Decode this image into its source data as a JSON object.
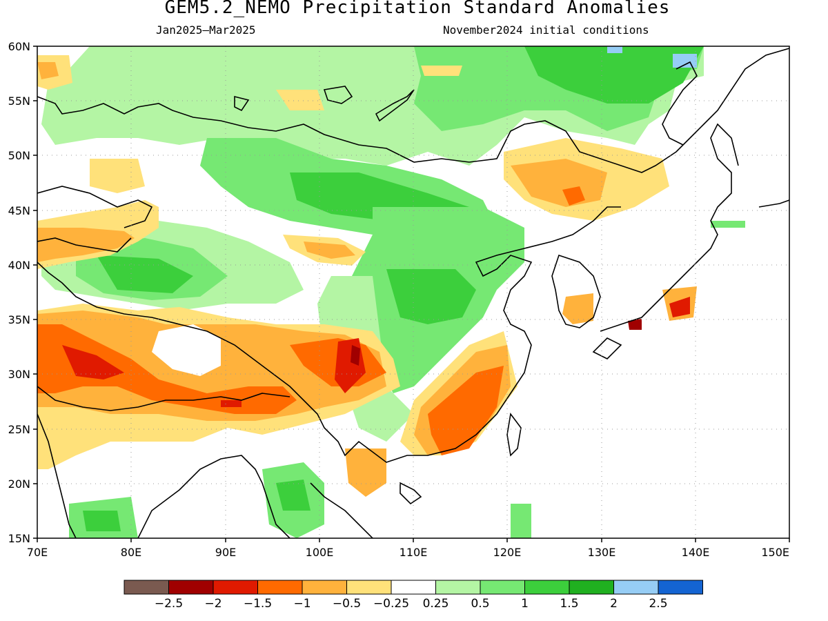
{
  "title": "GEM5.2_NEMO Precipitation Standard Anomalies",
  "subtitle_left": "Jan2025–Mar2025",
  "subtitle_right": "November2024 initial conditions",
  "lat_labels": [
    "60N",
    "55N",
    "50N",
    "45N",
    "40N",
    "35N",
    "30N",
    "25N",
    "20N",
    "15N"
  ],
  "lon_labels": [
    "70E",
    "80E",
    "90E",
    "100E",
    "110E",
    "120E",
    "130E",
    "140E",
    "150E"
  ],
  "colorbar": {
    "colors": [
      "#7a5a50",
      "#a00000",
      "#e01a00",
      "#ff6a00",
      "#ffb23c",
      "#ffe17a",
      "#ffffff",
      "#b4f5a4",
      "#76e873",
      "#3ccf3c",
      "#20b020",
      "#96cdf5",
      "#1464d2"
    ],
    "labels": [
      "−2.5",
      "−2",
      "−1.5",
      "−1",
      "−0.5",
      "−0.25",
      "0.25",
      "0.5",
      "1",
      "1.5",
      "2",
      "2.5"
    ]
  }
}
